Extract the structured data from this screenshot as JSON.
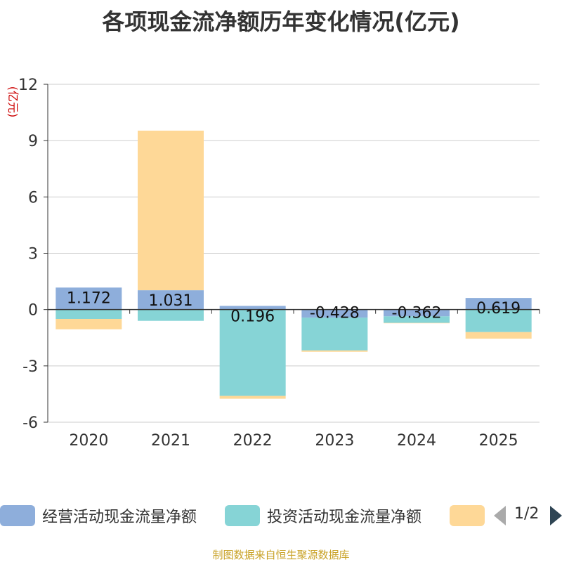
{
  "chart_data": {
    "type": "bar",
    "stacked": true,
    "title": "各项现金流净额历年变化情况(亿元)",
    "ylabel": "(亿元)",
    "ylim": [
      -6,
      12
    ],
    "yticks": [
      12,
      9,
      6,
      3,
      0,
      -3,
      -6
    ],
    "categories": [
      "2020",
      "2021",
      "2022",
      "2023",
      "2024",
      "2025"
    ],
    "series": [
      {
        "name": "经营活动现金流量净额",
        "color": "#8eaedb",
        "values": [
          1.172,
          1.031,
          0.196,
          -0.428,
          -0.362,
          0.619
        ],
        "labels": [
          "1.172",
          "1.031",
          "0.196",
          "-0.428",
          "-0.362",
          "0.619"
        ]
      },
      {
        "name": "投资活动现金流量净额",
        "color": "#86d4d6",
        "values": [
          -0.5,
          -0.6,
          -4.6,
          -1.75,
          -0.35,
          -1.2
        ]
      },
      {
        "name": "",
        "color": "#fed897",
        "values": [
          -0.55,
          8.5,
          -0.15,
          -0.07,
          -0.02,
          -0.35
        ]
      }
    ],
    "grid": true
  },
  "legend": {
    "page": "1/2"
  },
  "source": "制图数据来自恒生聚源数据库"
}
